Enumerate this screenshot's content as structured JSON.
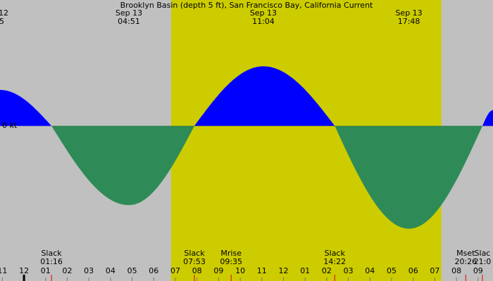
{
  "chart_data": {
    "type": "area",
    "title": "Brooklyn Basin (depth 5 ft), San Francisco Bay, California Current",
    "y_label": "0 kt",
    "x": [
      -1.11,
      1.27,
      4.85,
      7.88,
      11.07,
      14.37,
      17.8,
      21.2,
      21.69
    ],
    "values": [
      0.64,
      0,
      -1.41,
      0,
      1.06,
      0,
      -1.83,
      0,
      0.28
    ],
    "flood_color": "#0000ff",
    "ebb_color": "#2e8b57",
    "background_color": "#c0c0c0",
    "daylight_color": "#cccc00",
    "daylight": [
      6.8,
      19.3
    ],
    "xlim": [
      -1.11,
      21.69
    ],
    "ylim": [
      -2.76,
      2.24
    ],
    "xticks": [
      {
        "value": -1,
        "label": "11"
      },
      {
        "value": 0,
        "label": "12"
      },
      {
        "value": 1,
        "label": "01"
      },
      {
        "value": 2,
        "label": "02"
      },
      {
        "value": 3,
        "label": "03"
      },
      {
        "value": 4,
        "label": "04"
      },
      {
        "value": 5,
        "label": "05"
      },
      {
        "value": 6,
        "label": "06"
      },
      {
        "value": 7,
        "label": "07"
      },
      {
        "value": 8,
        "label": "08"
      },
      {
        "value": 9,
        "label": "09"
      },
      {
        "value": 10,
        "label": "10"
      },
      {
        "value": 11,
        "label": "11"
      },
      {
        "value": 12,
        "label": "12"
      },
      {
        "value": 13,
        "label": "01"
      },
      {
        "value": 14,
        "label": "02"
      },
      {
        "value": 15,
        "label": "03"
      },
      {
        "value": 16,
        "label": "04"
      },
      {
        "value": 17,
        "label": "05"
      },
      {
        "value": 18,
        "label": "06"
      },
      {
        "value": 19,
        "label": "07"
      },
      {
        "value": 20,
        "label": "08"
      },
      {
        "value": 21,
        "label": "09"
      }
    ],
    "left_edge_date": "12",
    "left_edge_time": "5",
    "top_events": [
      {
        "x": 4.85,
        "date": "Sep 13",
        "time": "04:51"
      },
      {
        "x": 11.07,
        "date": "Sep 13",
        "time": "11:04"
      },
      {
        "x": 17.8,
        "date": "Sep 13",
        "time": "17:48"
      }
    ],
    "bottom_events": [
      {
        "x": 1.27,
        "name": "Slack",
        "time": "01:16"
      },
      {
        "x": 7.88,
        "name": "Slack",
        "time": "07:53"
      },
      {
        "x": 9.58,
        "name": "Mrise",
        "time": "09:35"
      },
      {
        "x": 14.37,
        "name": "Slack",
        "time": "14:22"
      },
      {
        "x": 20.43,
        "name": "Mset",
        "time": "20:26"
      },
      {
        "x": 21.2,
        "name": "Slac",
        "time": "21:0"
      }
    ]
  }
}
